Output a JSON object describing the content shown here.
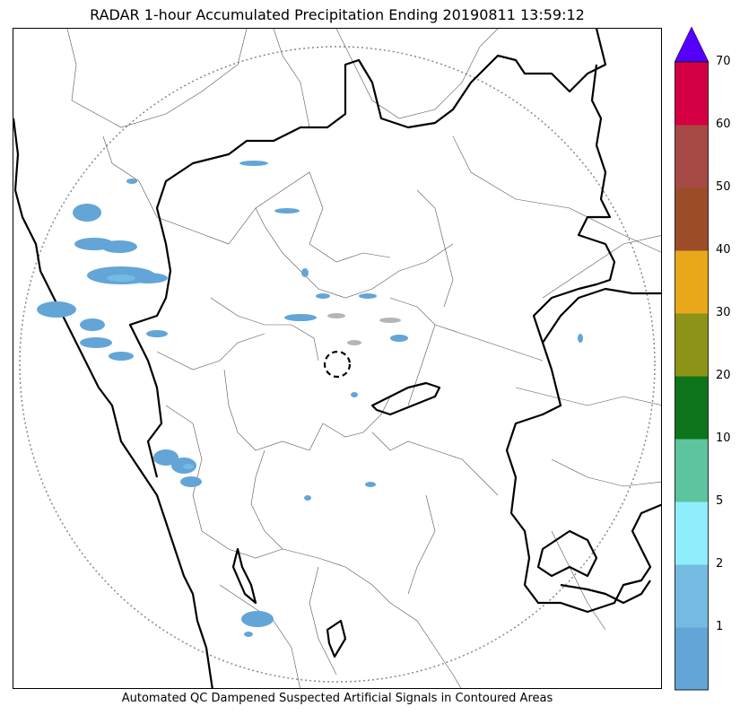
{
  "title": "RADAR 1-hour Accumulated Precipitation Ending 20190811 13:59:12",
  "caption": "Automated QC Dampened Suspected Artificial Signals in Contoured Areas",
  "colorbar": {
    "levels": [
      {
        "label": "",
        "color": "#63A5D7"
      },
      {
        "label": "1",
        "color": "#74BBE2"
      },
      {
        "label": "2",
        "color": "#90EEFC"
      },
      {
        "label": "5",
        "color": "#5DC49D"
      },
      {
        "label": "10",
        "color": "#0E741B"
      },
      {
        "label": "20",
        "color": "#8C9317"
      },
      {
        "label": "30",
        "color": "#E8A81A"
      },
      {
        "label": "40",
        "color": "#9B4D29"
      },
      {
        "label": "50",
        "color": "#A74A45"
      },
      {
        "label": "60",
        "color": "#D50044"
      }
    ],
    "top_label": "70",
    "extend_color": "#5500FF"
  }
}
